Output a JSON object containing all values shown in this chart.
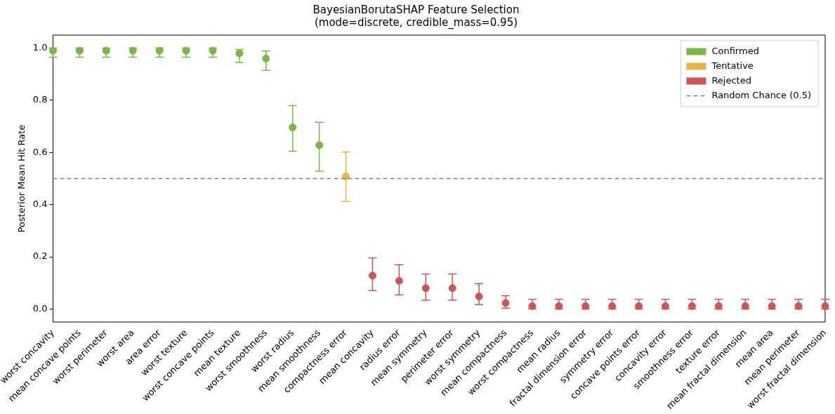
{
  "chart_data": {
    "type": "scatter",
    "title": "BayesianBorutaSHAP Feature Selection",
    "subtitle": "(mode=discrete, credible_mass=0.95)",
    "ylabel": "Posterior Mean Hit Rate",
    "categories": [
      "worst concavity",
      "mean concave points",
      "worst perimeter",
      "worst area",
      "area error",
      "worst texture",
      "worst concave points",
      "mean texture",
      "worst smoothness",
      "worst radius",
      "mean smoothness",
      "compactness error",
      "mean concavity",
      "radius error",
      "mean symmetry",
      "perimeter error",
      "worst symmetry",
      "mean compactness",
      "worst compactness",
      "mean radius",
      "fractal dimension error",
      "symmetry error",
      "concave points error",
      "concavity error",
      "smoothness error",
      "texture error",
      "mean fractal dimension",
      "mean area",
      "mean perimeter",
      "worst fractal dimension"
    ],
    "series": [
      {
        "name": "Confirmed",
        "color": "#7ab648",
        "values": [
          0.99,
          0.99,
          0.99,
          0.99,
          0.99,
          0.99,
          0.99,
          0.98,
          0.96,
          0.696,
          0.628,
          null,
          null,
          null,
          null,
          null,
          null,
          null,
          null,
          null,
          null,
          null,
          null,
          null,
          null,
          null,
          null,
          null,
          null,
          null
        ],
        "errors": [
          [
            0.965,
            1.0
          ],
          [
            0.965,
            1.0
          ],
          [
            0.965,
            1.0
          ],
          [
            0.965,
            1.0
          ],
          [
            0.965,
            1.0
          ],
          [
            0.965,
            1.0
          ],
          [
            0.965,
            1.0
          ],
          [
            0.945,
            0.995
          ],
          [
            0.915,
            0.989
          ],
          [
            0.605,
            0.78
          ],
          [
            0.528,
            0.716
          ],
          null,
          null,
          null,
          null,
          null,
          null,
          null,
          null,
          null,
          null,
          null,
          null,
          null,
          null,
          null,
          null,
          null,
          null,
          null
        ]
      },
      {
        "name": "Tentative",
        "color": "#e8b44a",
        "values": [
          null,
          null,
          null,
          null,
          null,
          null,
          null,
          null,
          null,
          null,
          null,
          0.508,
          null,
          null,
          null,
          null,
          null,
          null,
          null,
          null,
          null,
          null,
          null,
          null,
          null,
          null,
          null,
          null,
          null,
          null
        ],
        "errors": [
          null,
          null,
          null,
          null,
          null,
          null,
          null,
          null,
          null,
          null,
          null,
          [
            0.412,
            0.602
          ],
          null,
          null,
          null,
          null,
          null,
          null,
          null,
          null,
          null,
          null,
          null,
          null,
          null,
          null,
          null,
          null,
          null,
          null
        ]
      },
      {
        "name": "Rejected",
        "color": "#cd5555",
        "values": [
          null,
          null,
          null,
          null,
          null,
          null,
          null,
          null,
          null,
          null,
          null,
          null,
          0.128,
          0.108,
          0.08,
          0.08,
          0.048,
          0.023,
          0.011,
          0.011,
          0.011,
          0.011,
          0.011,
          0.011,
          0.011,
          0.011,
          0.011,
          0.011,
          0.011,
          0.011
        ],
        "errors": [
          null,
          null,
          null,
          null,
          null,
          null,
          null,
          null,
          null,
          null,
          null,
          null,
          [
            0.071,
            0.196
          ],
          [
            0.054,
            0.17
          ],
          [
            0.034,
            0.134
          ],
          [
            0.034,
            0.134
          ],
          [
            0.017,
            0.097
          ],
          [
            0.003,
            0.051
          ],
          [
            0.0,
            0.037
          ],
          [
            0.0,
            0.037
          ],
          [
            0.0,
            0.037
          ],
          [
            0.0,
            0.037
          ],
          [
            0.0,
            0.037
          ],
          [
            0.0,
            0.037
          ],
          [
            0.0,
            0.037
          ],
          [
            0.0,
            0.037
          ],
          [
            0.0,
            0.037
          ],
          [
            0.0,
            0.037
          ],
          [
            0.0,
            0.037
          ],
          [
            0.0,
            0.037
          ]
        ]
      }
    ],
    "ylim": [
      -0.05,
      1.05
    ],
    "yticks": [
      {
        "value": 0,
        "label": "0.0"
      },
      {
        "value": 0.2,
        "label": "0.2"
      },
      {
        "value": 0.4,
        "label": "0.4"
      },
      {
        "value": 0.6,
        "label": "0.6"
      },
      {
        "value": 0.8,
        "label": "0.8"
      },
      {
        "value": 1,
        "label": "1.0"
      }
    ],
    "ref_lines": [
      {
        "axis": "y",
        "value": 0.5,
        "label": "Random Chance (0.5)",
        "color": "#808080",
        "line_style": "dashed"
      }
    ],
    "grid": false,
    "legend": "top right",
    "marker": "circle"
  }
}
